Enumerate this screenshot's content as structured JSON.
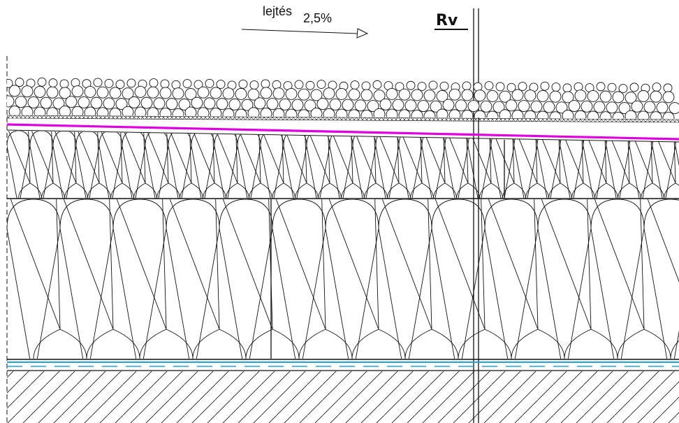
{
  "slope": {
    "label": "lejtés",
    "value": "2,5%"
  },
  "reference": {
    "label": "Rv"
  },
  "colors": {
    "line": "#111111",
    "membrane": "#e000e0",
    "vapor_barrier": "#1aa7d8",
    "background": "#ffffff"
  }
}
